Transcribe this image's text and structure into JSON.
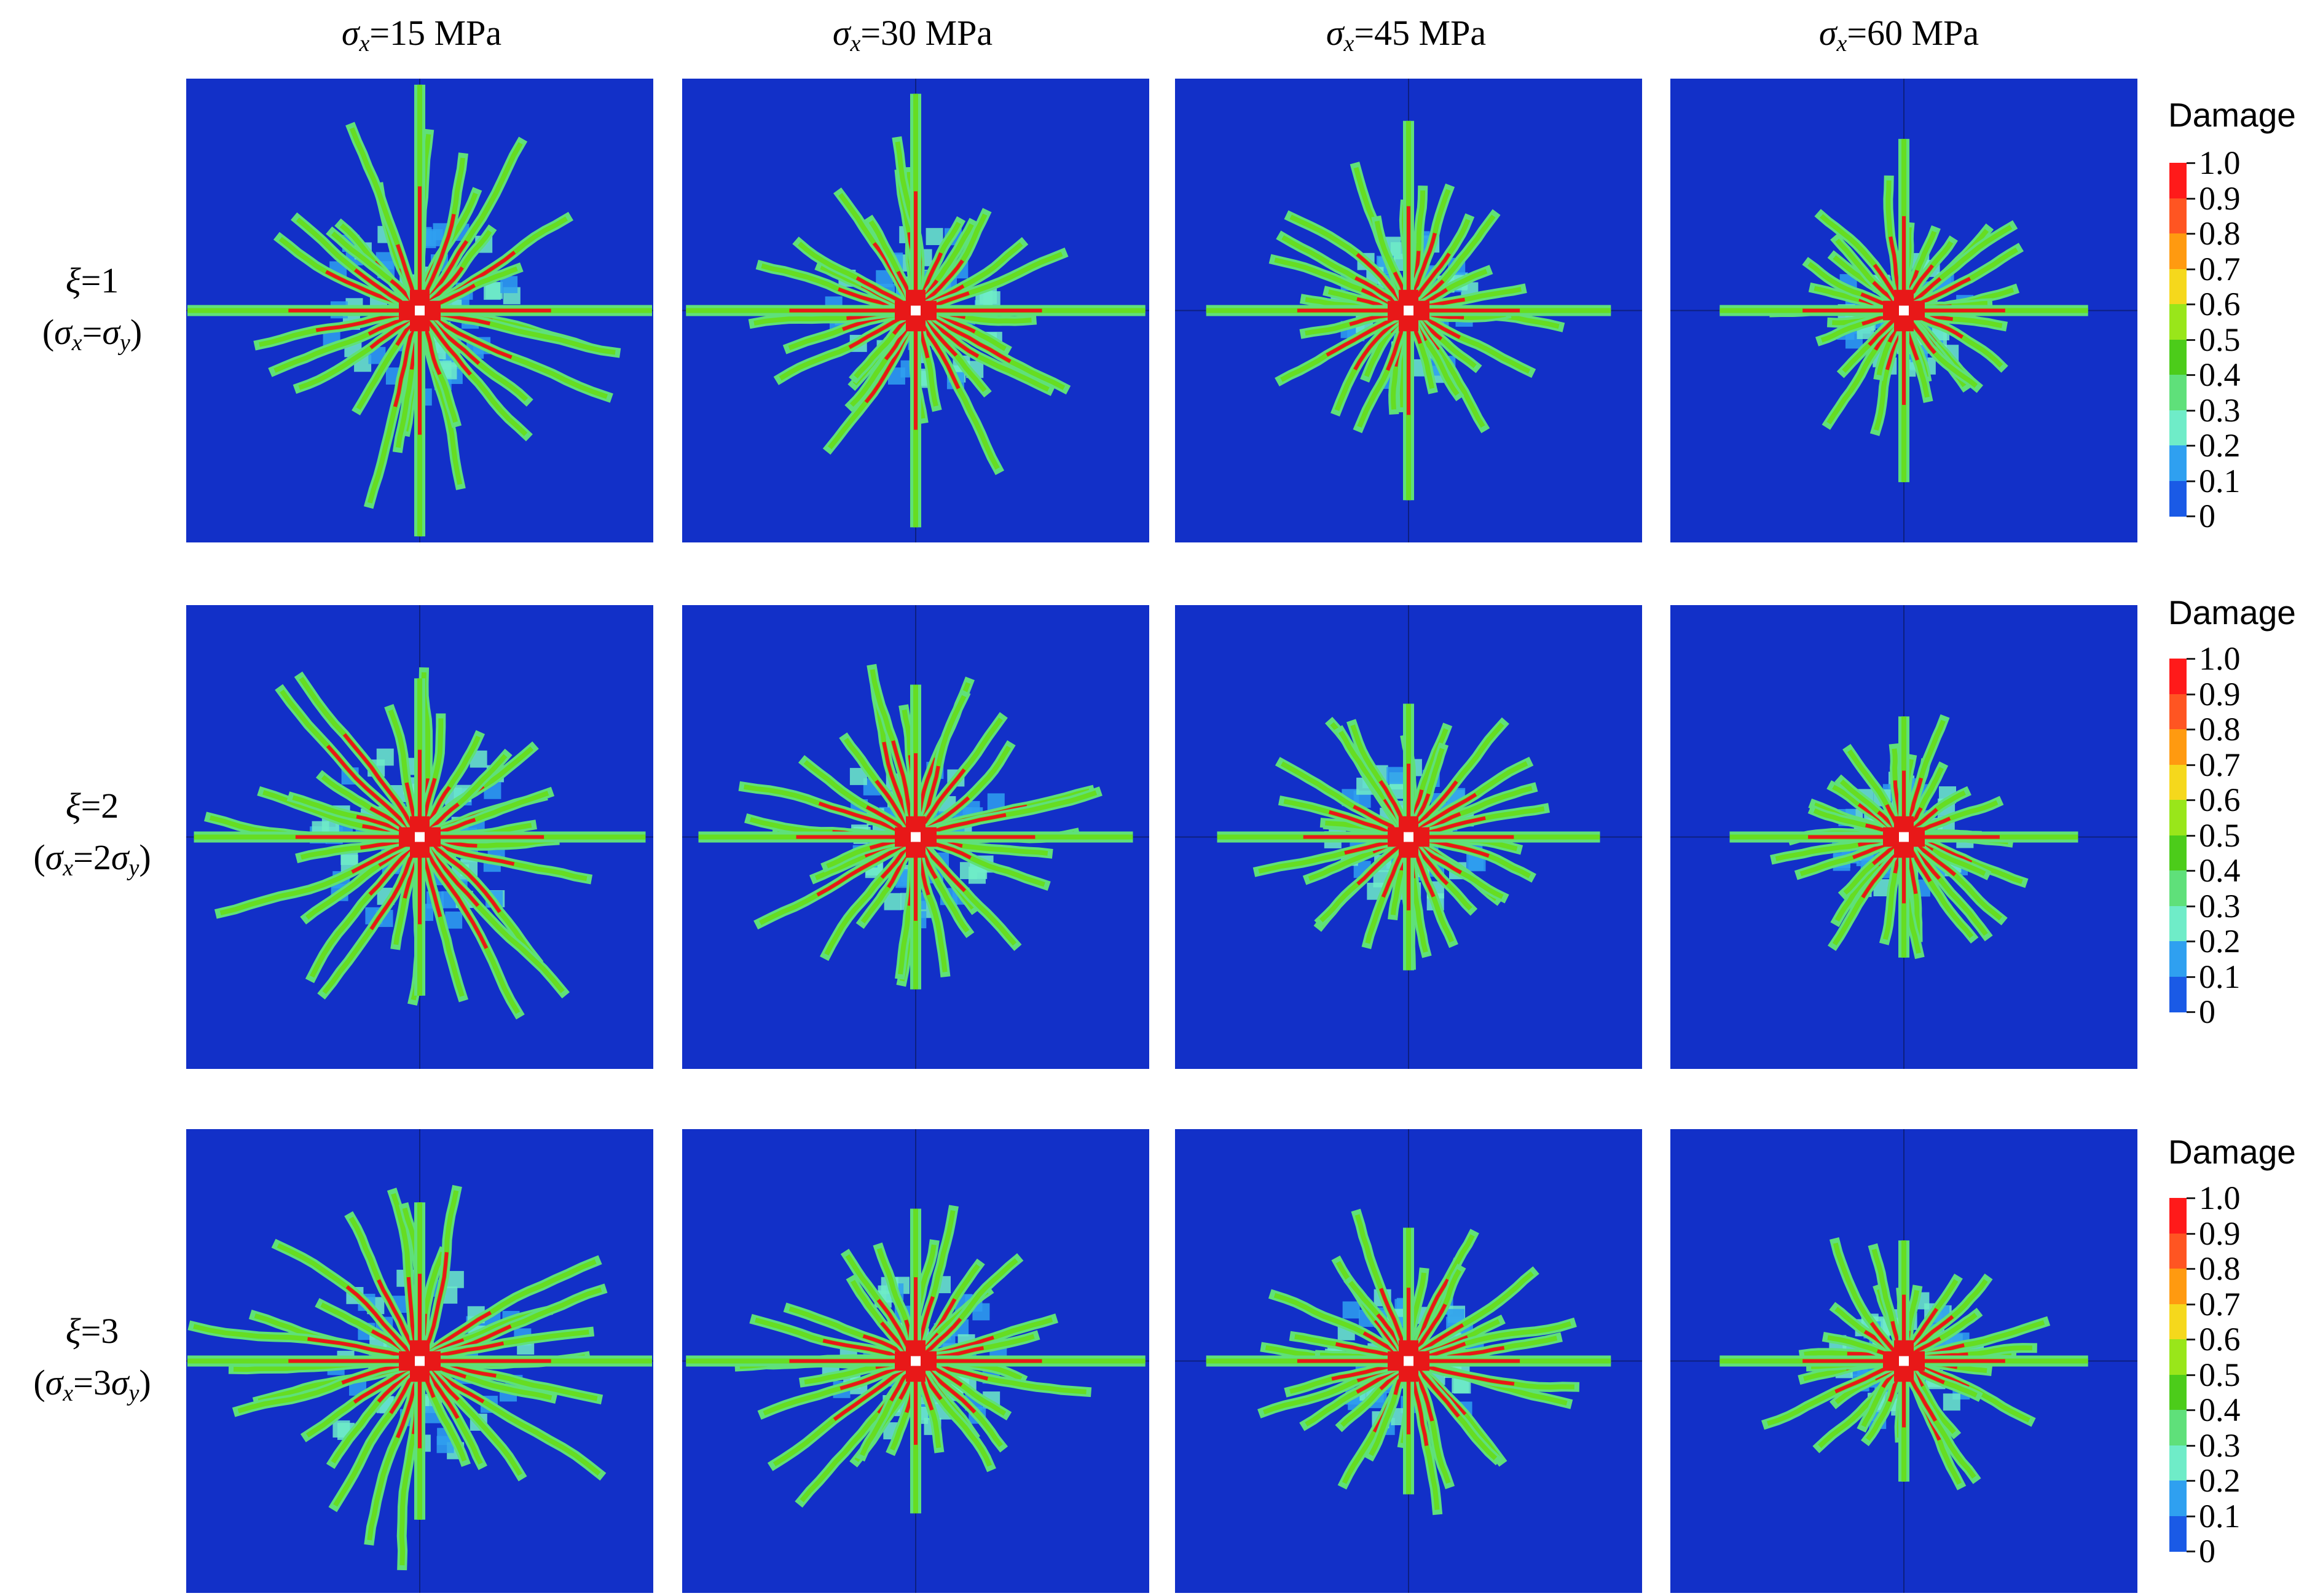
{
  "columns": [
    {
      "sym": "σ",
      "sub": "x",
      "text": "=15 MPa"
    },
    {
      "sym": "σ",
      "sub": "x",
      "text": "=30 MPa"
    },
    {
      "sym": "σ",
      "sub": "x",
      "text": "=45 MPa"
    },
    {
      "sym": "σ",
      "sub": "x",
      "text": "=60 MPa"
    }
  ],
  "rows": [
    {
      "xi_sym": "ξ",
      "xi_text": "=1",
      "open": "(",
      "s1": "σ",
      "s1_sub": "x",
      "mid": "=",
      "s2": "σ",
      "s2_sub": "y",
      "close": ")"
    },
    {
      "xi_sym": "ξ",
      "xi_text": "=2",
      "open": "(",
      "s1": "σ",
      "s1_sub": "x",
      "mid": "=2",
      "s2": "σ",
      "s2_sub": "y",
      "close": ")"
    },
    {
      "xi_sym": "ξ",
      "xi_text": "=3",
      "open": "(",
      "s1": "σ",
      "s1_sub": "x",
      "mid": "=3",
      "s2": "σ",
      "s2_sub": "y",
      "close": ")"
    }
  ],
  "colorbar": {
    "title": "Damage",
    "labels": [
      "1.0",
      "0.9",
      "0.8",
      "0.7",
      "0.6",
      "0.5",
      "0.4",
      "0.3",
      "0.2",
      "0.1",
      "0"
    ],
    "colors": [
      "#ff1a1a",
      "#ff5522",
      "#ff9a10",
      "#f5d81c",
      "#99e61a",
      "#4ccc1a",
      "#5fe07a",
      "#6fecc8",
      "#2fa0f0",
      "#1a5ae6",
      "#1230c8"
    ]
  },
  "colors": {
    "background": "#1230c8",
    "crack_core": "#e81818",
    "crack_mid": "#66dd22",
    "crack_halo": "#5fe0b0"
  },
  "chart_data": {
    "type": "heatmap",
    "description_units": "damage (0–1)",
    "rows_xi": [
      1,
      2,
      3
    ],
    "columns_sigma_x_MPa": [
      15,
      30,
      45,
      60
    ],
    "damage_range": [
      0,
      1
    ],
    "colorbar_ticks": [
      0,
      0.1,
      0.2,
      0.3,
      0.4,
      0.5,
      0.6,
      0.7,
      0.8,
      0.9,
      1.0
    ]
  }
}
